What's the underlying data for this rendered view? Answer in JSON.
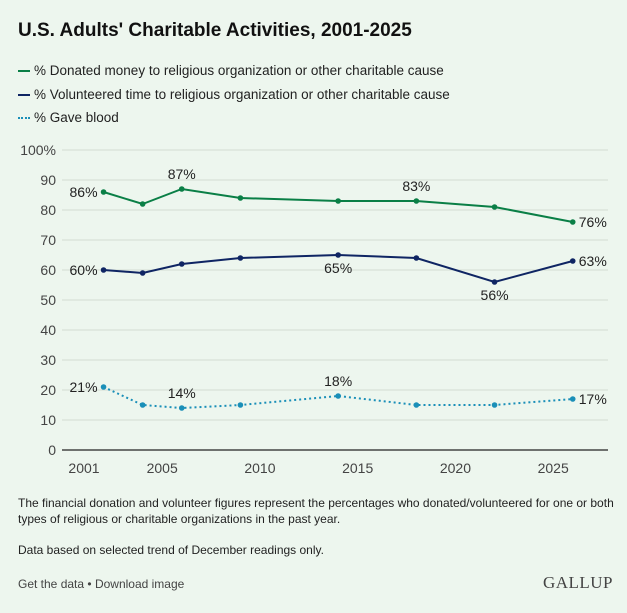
{
  "chart_data": {
    "type": "line",
    "title": "U.S. Adults' Charitable Activities, 2001-2025",
    "x": [
      2002,
      2004,
      2006,
      2009,
      2014,
      2018,
      2022,
      2026
    ],
    "series": [
      {
        "name": "% Donated money to religious organization or other charitable cause",
        "color": "#0a7f46",
        "style": "solid",
        "values": [
          86,
          82,
          87,
          84,
          83,
          83,
          81,
          76
        ],
        "labels": [
          "86%",
          "",
          "87%",
          "",
          "",
          "83%",
          "",
          "76%"
        ]
      },
      {
        "name": "% Volunteered time to religious organization or other charitable cause",
        "color": "#0f2563",
        "style": "solid",
        "values": [
          60,
          59,
          62,
          64,
          65,
          64,
          56,
          63
        ],
        "labels": [
          "60%",
          "",
          "",
          "",
          "65%",
          "",
          "56%",
          "63%"
        ]
      },
      {
        "name": "% Gave blood",
        "color": "#1a8fb8",
        "style": "dotted",
        "values": [
          21,
          15,
          14,
          15,
          18,
          15,
          15,
          17
        ],
        "labels": [
          "21%",
          "",
          "14%",
          "",
          "18%",
          "",
          "",
          "17%"
        ]
      }
    ],
    "ylim": [
      0,
      100
    ],
    "yticks": [
      "0",
      "10",
      "20",
      "30",
      "40",
      "50",
      "60",
      "70",
      "80",
      "90",
      "100%"
    ],
    "xticks": [
      "2001",
      "2005",
      "2010",
      "2015",
      "2020",
      "2025"
    ],
    "xtick_values": [
      2001,
      2005,
      2010,
      2015,
      2020,
      2025
    ],
    "grid": true,
    "legend": "top-left"
  },
  "notes": [
    "The financial donation and volunteer figures represent the percentages who donated/volunteered for one or both types of religious or charitable organizations in the past year.",
    "Data based on selected trend of December readings only."
  ],
  "links": {
    "get_data": "Get the data",
    "separator": "•",
    "download": "Download image"
  },
  "logo": "GALLUP"
}
